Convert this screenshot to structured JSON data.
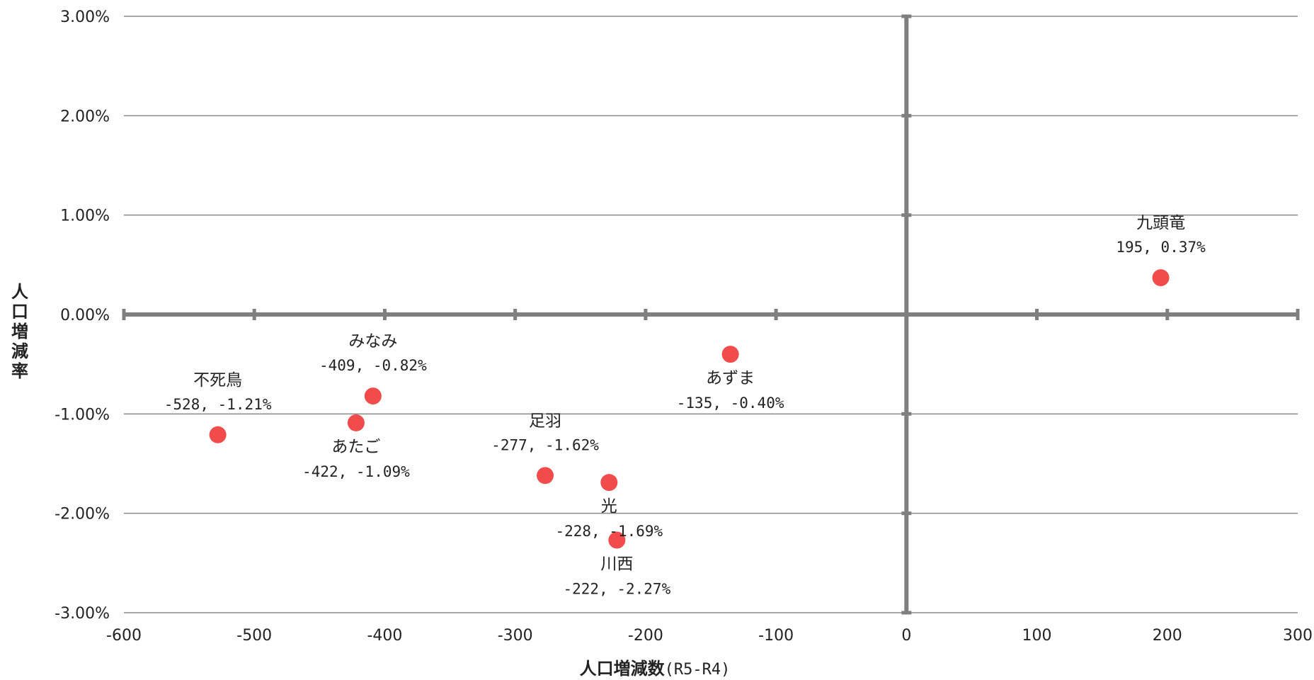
{
  "chart_data": {
    "type": "scatter",
    "xlabel_main": "人口増減数",
    "xlabel_sub": "(R5-R4)",
    "ylabel": "人口増減率",
    "xlim": [
      -600,
      300
    ],
    "ylim": [
      -3,
      3
    ],
    "x_ticks": [
      -600,
      -500,
      -400,
      -300,
      -200,
      -100,
      0,
      100,
      200,
      300
    ],
    "x_tick_labels": [
      "-600",
      "-500",
      "-400",
      "-300",
      "-200",
      "-100",
      "0",
      "100",
      "200",
      "300"
    ],
    "y_ticks": [
      3,
      2,
      1,
      0,
      -1,
      -2,
      -3
    ],
    "y_tick_labels": [
      "3.00%",
      "2.00%",
      "1.00%",
      "0.00%",
      "-1.00%",
      "-2.00%",
      "-3.00%"
    ],
    "grid": "horizontal",
    "marker_color": "#f24b4b",
    "points": [
      {
        "name": "不死鳥",
        "x": -528,
        "y": -1.21,
        "value_label": "-528, -1.21%",
        "label_pos": "above"
      },
      {
        "name": "みなみ",
        "x": -409,
        "y": -0.82,
        "value_label": "-409, -0.82%",
        "label_pos": "above"
      },
      {
        "name": "あたご",
        "x": -422,
        "y": -1.09,
        "value_label": "-422, -1.09%",
        "label_pos": "below"
      },
      {
        "name": "足羽",
        "x": -277,
        "y": -1.62,
        "value_label": "-277, -1.62%",
        "label_pos": "above"
      },
      {
        "name": "光",
        "x": -228,
        "y": -1.69,
        "value_label": "-228, -1.69%",
        "label_pos": "below"
      },
      {
        "name": "川西",
        "x": -222,
        "y": -2.27,
        "value_label": "-222, -2.27%",
        "label_pos": "below"
      },
      {
        "name": "あずま",
        "x": -135,
        "y": -0.4,
        "value_label": "-135, -0.40%",
        "label_pos": "below"
      },
      {
        "name": "九頭竜",
        "x": 195,
        "y": 0.37,
        "value_label": "195, 0.37%",
        "label_pos": "above"
      }
    ]
  }
}
